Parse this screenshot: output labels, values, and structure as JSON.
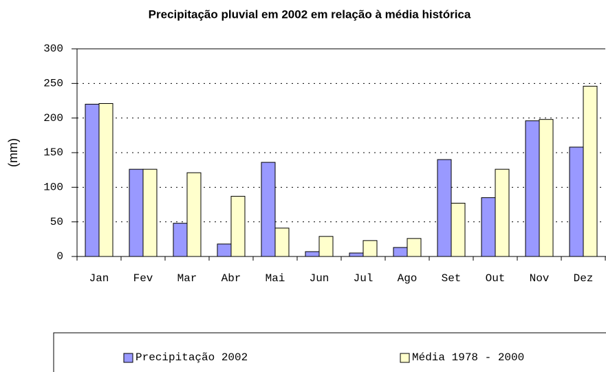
{
  "chart_data": {
    "type": "bar",
    "title": "Precipitação pluvial em 2002 em relação à média histórica",
    "y_label": "(mm)",
    "categories": [
      "Jan",
      "Fev",
      "Mar",
      "Abr",
      "Mai",
      "Jun",
      "Jul",
      "Ago",
      "Set",
      "Out",
      "Nov",
      "Dez"
    ],
    "series": [
      {
        "name": "Precipitação 2002",
        "color": "#9999ff",
        "values": [
          220,
          126,
          48,
          18,
          136,
          7,
          5,
          13,
          140,
          85,
          196,
          158
        ]
      },
      {
        "name": "Média 1978 - 2000",
        "color": "#ffffcc",
        "values": [
          221,
          126,
          121,
          87,
          41,
          29,
          23,
          26,
          77,
          126,
          198,
          246
        ]
      }
    ],
    "ylim": [
      0,
      300
    ],
    "yticks": [
      0,
      50,
      100,
      150,
      200,
      250,
      300
    ],
    "grid": true,
    "legend": "bottom"
  }
}
